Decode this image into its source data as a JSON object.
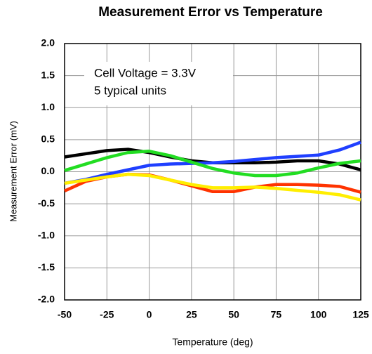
{
  "chart_data": {
    "type": "line",
    "title": "Measurement Error vs Temperature",
    "xlabel": "Temperature (deg)",
    "ylabel": "Measurement Error (mV)",
    "annotations": [
      "Cell Voltage = 3.3V",
      "5 typical units"
    ],
    "x": [
      -50,
      -37.5,
      -25,
      -12.5,
      0,
      12.5,
      25,
      37.5,
      50,
      62.5,
      75,
      87.5,
      100,
      112.5,
      125
    ],
    "series": [
      {
        "color": "#000000",
        "values": [
          0.23,
          0.28,
          0.33,
          0.35,
          0.3,
          0.23,
          0.17,
          0.14,
          0.14,
          0.14,
          0.15,
          0.17,
          0.17,
          0.12,
          0.03
        ]
      },
      {
        "color": "#1f3fff",
        "values": [
          -0.18,
          -0.12,
          -0.04,
          0.03,
          0.1,
          0.12,
          0.13,
          0.14,
          0.16,
          0.19,
          0.22,
          0.24,
          0.26,
          0.34,
          0.46
        ]
      },
      {
        "color": "#22dd22",
        "values": [
          0.02,
          0.12,
          0.22,
          0.3,
          0.32,
          0.25,
          0.15,
          0.05,
          -0.02,
          -0.06,
          -0.06,
          -0.02,
          0.06,
          0.13,
          0.17
        ]
      },
      {
        "color": "#ff3300",
        "values": [
          -0.3,
          -0.15,
          -0.08,
          -0.04,
          -0.05,
          -0.13,
          -0.22,
          -0.31,
          -0.31,
          -0.24,
          -0.2,
          -0.2,
          -0.21,
          -0.23,
          -0.32
        ]
      },
      {
        "color": "#ffee00",
        "values": [
          -0.18,
          -0.13,
          -0.08,
          -0.04,
          -0.06,
          -0.13,
          -0.2,
          -0.25,
          -0.25,
          -0.24,
          -0.26,
          -0.29,
          -0.32,
          -0.36,
          -0.44
        ]
      }
    ],
    "xlim": [
      -50,
      125
    ],
    "xticks": [
      -50,
      -25,
      0,
      25,
      50,
      75,
      100,
      125
    ],
    "ylim": [
      -2,
      2
    ],
    "yticks": [
      {
        "value": -2,
        "label": "-2.0"
      },
      -1.5,
      {
        "value": -1,
        "label": "-1.0"
      },
      -0.5,
      {
        "value": 0,
        "label": "0.0"
      },
      0.5,
      {
        "value": 1,
        "label": "1.0"
      },
      1.5,
      {
        "value": 2,
        "label": "2.0"
      }
    ],
    "grid": true
  }
}
